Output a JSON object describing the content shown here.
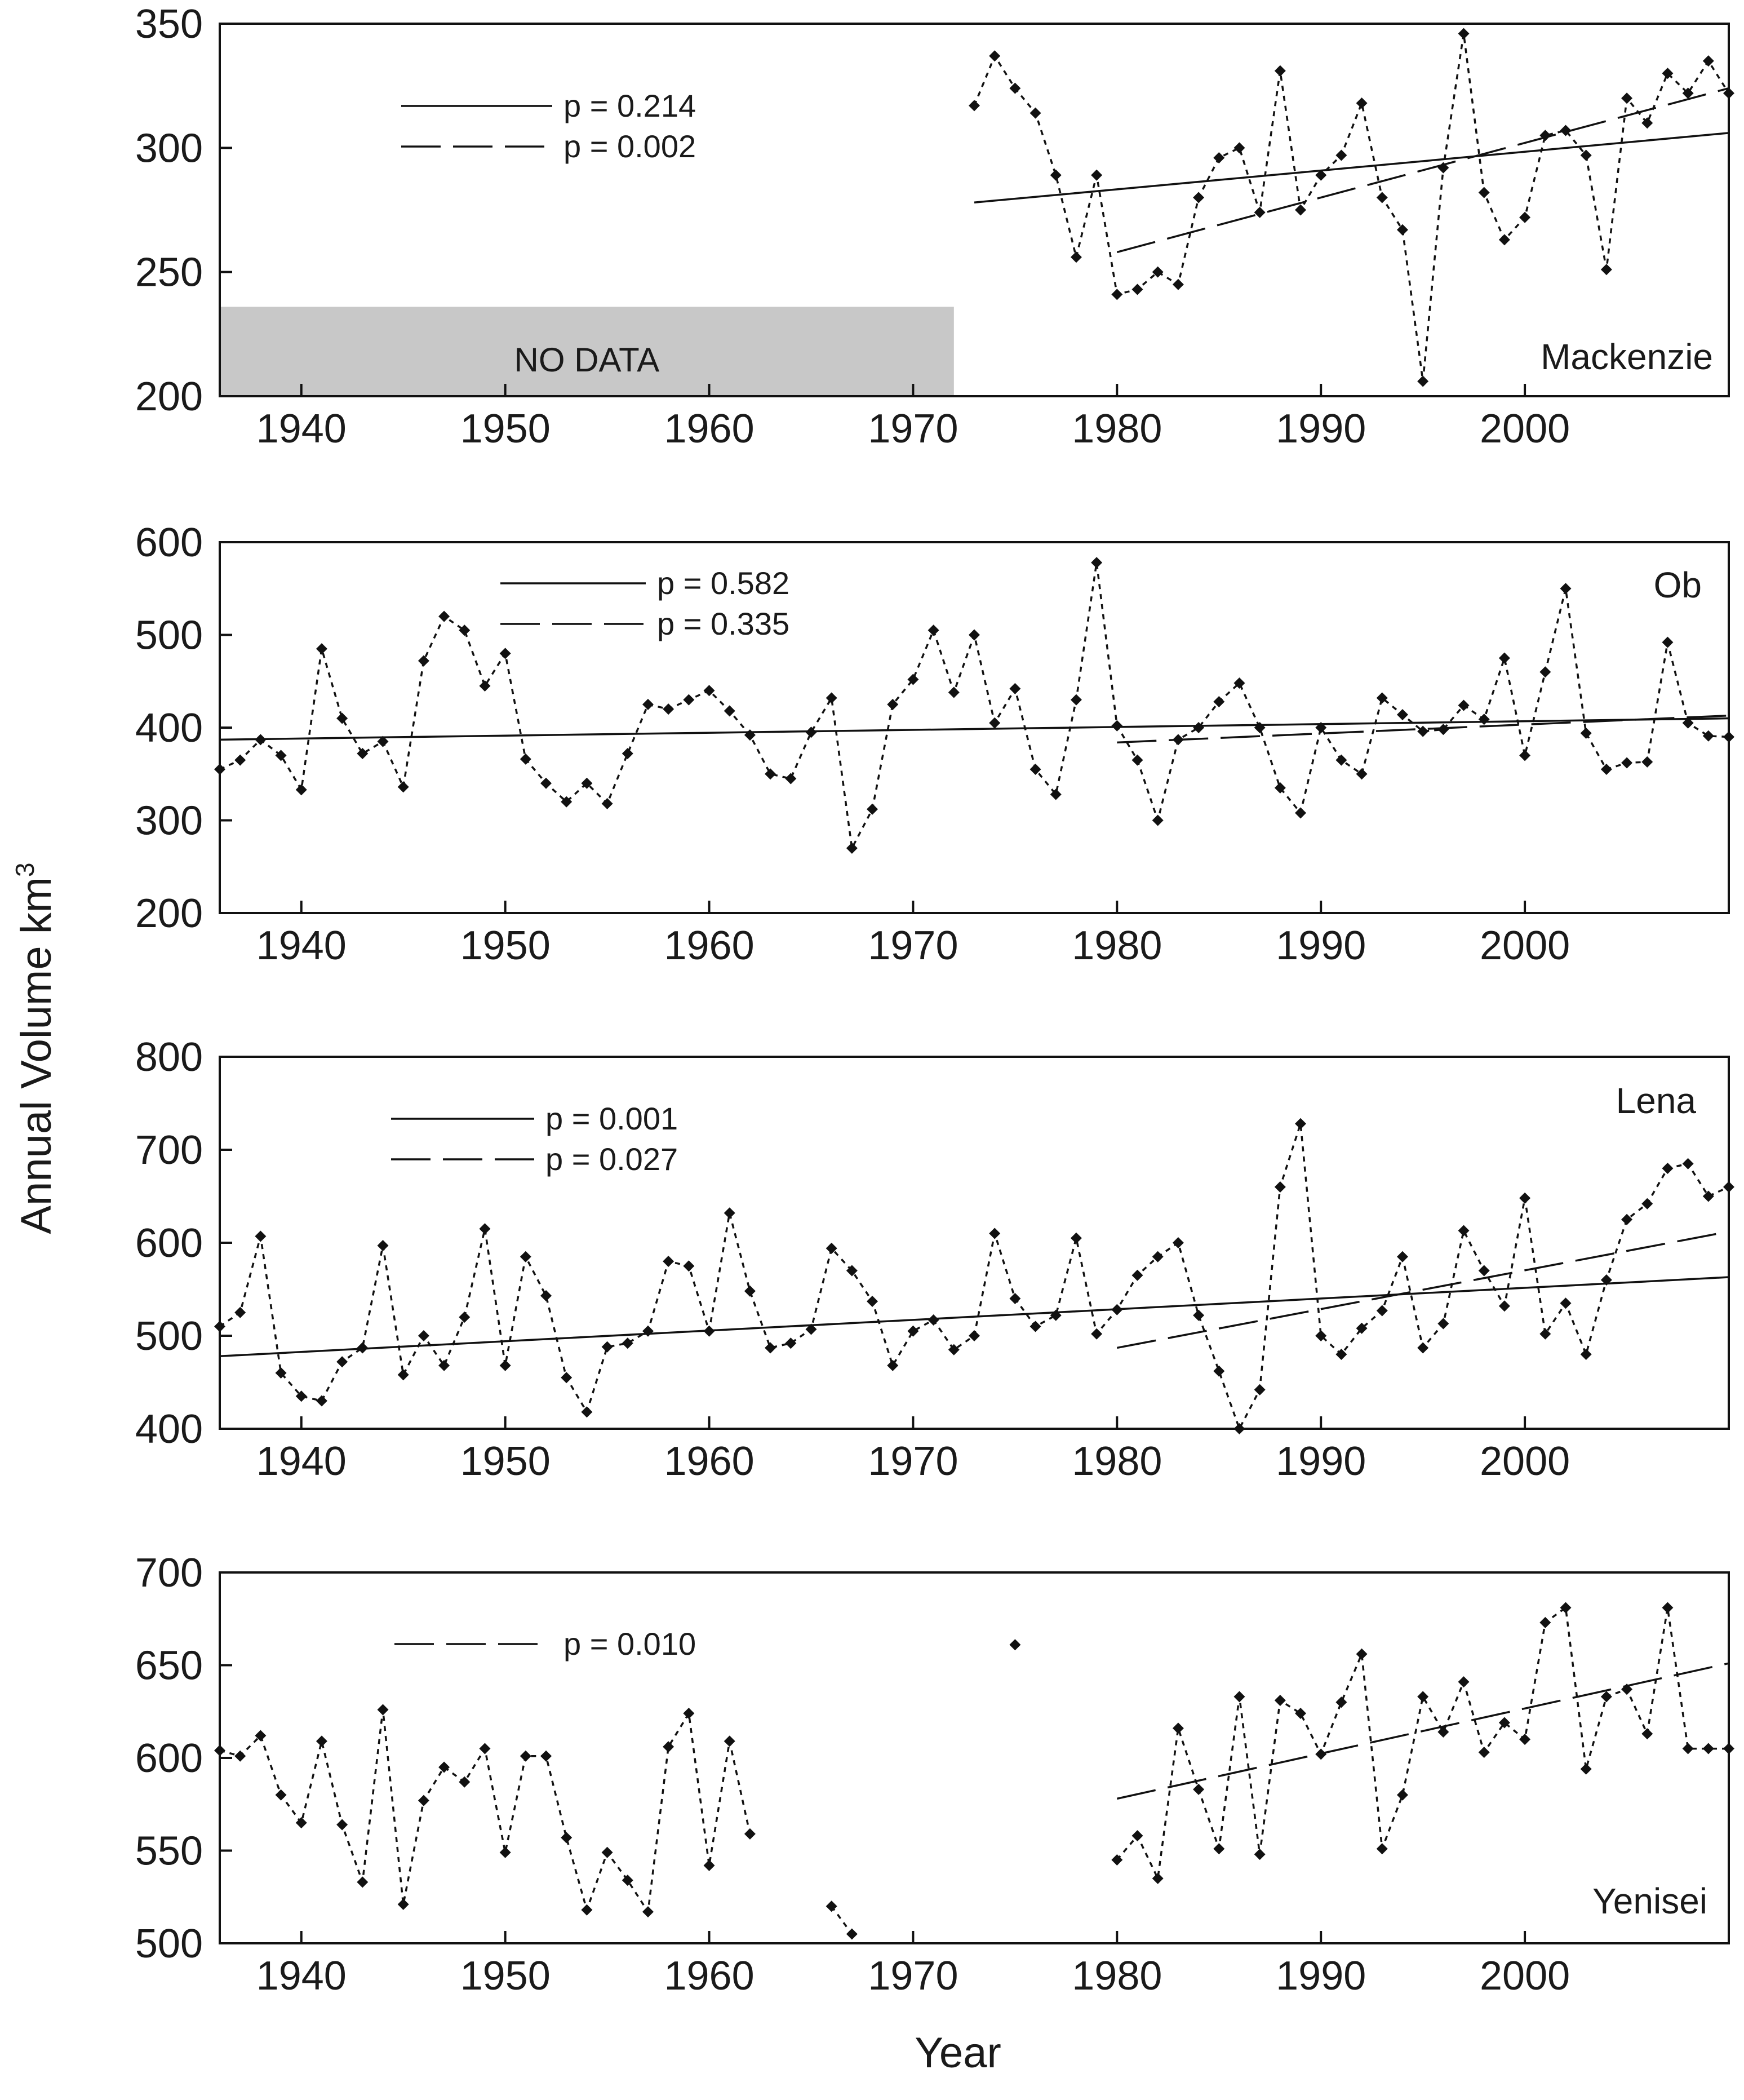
{
  "figure": {
    "xlabel": "Year",
    "ylabel": "Annual Volume km",
    "ylabel_sup": "3",
    "xticks": [
      1940,
      1950,
      1960,
      1970,
      1980,
      1990,
      2000
    ],
    "xlim": [
      1936,
      2010
    ]
  },
  "chart_data": [
    {
      "type": "line",
      "name": "Mackenzie",
      "ylim": [
        200,
        350
      ],
      "yticks": [
        200,
        250,
        300,
        350
      ],
      "no_data_label": "NO DATA",
      "no_data_range": [
        1936,
        1972
      ],
      "x": [
        1973,
        1974,
        1975,
        1976,
        1977,
        1978,
        1979,
        1980,
        1981,
        1982,
        1983,
        1984,
        1985,
        1986,
        1987,
        1988,
        1989,
        1990,
        1991,
        1992,
        1993,
        1994,
        1995,
        1996,
        1997,
        1998,
        1999,
        2000,
        2001,
        2002,
        2003,
        2004,
        2005,
        2006,
        2007,
        2008,
        2009,
        2010
      ],
      "values": [
        317,
        337,
        324,
        314,
        289,
        256,
        289,
        241,
        243,
        250,
        245,
        280,
        296,
        300,
        274,
        331,
        275,
        289,
        297,
        318,
        280,
        267,
        206,
        292,
        346,
        282,
        263,
        272,
        305,
        307,
        297,
        251,
        320,
        310,
        330,
        322,
        335,
        322
      ],
      "trends": [
        {
          "style": "solid",
          "label": "p = 0.214",
          "x": [
            1973,
            2010
          ],
          "y": [
            278,
            306
          ]
        },
        {
          "style": "dashed",
          "label": "p = 0.002",
          "x": [
            1980,
            2010
          ],
          "y": [
            258,
            324
          ]
        }
      ]
    },
    {
      "type": "line",
      "name": "Ob",
      "ylim": [
        200,
        600
      ],
      "yticks": [
        200,
        300,
        400,
        500,
        600
      ],
      "x": [
        1936,
        1937,
        1938,
        1939,
        1940,
        1941,
        1942,
        1943,
        1944,
        1945,
        1946,
        1947,
        1948,
        1949,
        1950,
        1951,
        1952,
        1953,
        1954,
        1955,
        1956,
        1957,
        1958,
        1959,
        1960,
        1961,
        1962,
        1963,
        1964,
        1965,
        1966,
        1967,
        1968,
        1969,
        1970,
        1971,
        1972,
        1973,
        1974,
        1975,
        1976,
        1977,
        1978,
        1979,
        1980,
        1981,
        1982,
        1983,
        1984,
        1985,
        1986,
        1987,
        1988,
        1989,
        1990,
        1991,
        1992,
        1993,
        1994,
        1995,
        1996,
        1997,
        1998,
        1999,
        2000,
        2001,
        2002,
        2003,
        2004,
        2005,
        2006,
        2007,
        2008,
        2009,
        2010
      ],
      "values": [
        355,
        365,
        387,
        370,
        333,
        485,
        410,
        372,
        385,
        336,
        472,
        520,
        505,
        445,
        480,
        366,
        340,
        320,
        340,
        318,
        372,
        425,
        420,
        430,
        440,
        418,
        392,
        350,
        345,
        395,
        432,
        270,
        312,
        425,
        452,
        505,
        438,
        500,
        405,
        442,
        355,
        328,
        430,
        578,
        402,
        365,
        300,
        387,
        400,
        428,
        448,
        400,
        335,
        308,
        400,
        365,
        350,
        432,
        414,
        396,
        398,
        424,
        409,
        475,
        370,
        460,
        550,
        394,
        355,
        362,
        363,
        492,
        405,
        391,
        390
      ],
      "trends": [
        {
          "style": "solid",
          "label": "p = 0.582",
          "x": [
            1936,
            2010
          ],
          "y": [
            387,
            410
          ]
        },
        {
          "style": "dashed",
          "label": "p = 0.335",
          "x": [
            1980,
            2010
          ],
          "y": [
            384,
            413
          ]
        }
      ]
    },
    {
      "type": "line",
      "name": "Lena",
      "ylim": [
        400,
        800
      ],
      "yticks": [
        400,
        500,
        600,
        700,
        800
      ],
      "x": [
        1936,
        1937,
        1938,
        1939,
        1940,
        1941,
        1942,
        1943,
        1944,
        1945,
        1946,
        1947,
        1948,
        1949,
        1950,
        1951,
        1952,
        1953,
        1954,
        1955,
        1956,
        1957,
        1958,
        1959,
        1960,
        1961,
        1962,
        1963,
        1964,
        1965,
        1966,
        1967,
        1968,
        1969,
        1970,
        1971,
        1972,
        1973,
        1974,
        1975,
        1976,
        1977,
        1978,
        1979,
        1980,
        1981,
        1982,
        1983,
        1984,
        1985,
        1986,
        1987,
        1988,
        1989,
        1990,
        1991,
        1992,
        1993,
        1994,
        1995,
        1996,
        1997,
        1998,
        1999,
        2000,
        2001,
        2002,
        2003,
        2004,
        2005,
        2006,
        2007,
        2008,
        2009,
        2010
      ],
      "values": [
        510,
        525,
        607,
        460,
        435,
        430,
        472,
        487,
        597,
        458,
        500,
        468,
        520,
        615,
        468,
        585,
        543,
        455,
        418,
        488,
        492,
        505,
        580,
        575,
        505,
        632,
        548,
        487,
        492,
        507,
        594,
        570,
        537,
        468,
        505,
        517,
        485,
        500,
        610,
        540,
        510,
        522,
        605,
        502,
        528,
        565,
        585,
        600,
        522,
        462,
        400,
        442,
        660,
        728,
        500,
        480,
        508,
        527,
        585,
        487,
        513,
        613,
        570,
        532,
        648,
        502,
        535,
        480,
        560,
        625,
        642,
        680,
        685,
        650,
        660
      ],
      "trends": [
        {
          "style": "solid",
          "label": "p = 0.001",
          "x": [
            1936,
            2010
          ],
          "y": [
            478,
            563
          ]
        },
        {
          "style": "dashed",
          "label": "p = 0.027",
          "x": [
            1980,
            2010
          ],
          "y": [
            487,
            612
          ]
        }
      ]
    },
    {
      "type": "line",
      "name": "Yenisei",
      "ylim": [
        500,
        700
      ],
      "yticks": [
        500,
        550,
        600,
        650,
        700
      ],
      "segments": [
        {
          "x": [
            1936,
            1937,
            1938,
            1939,
            1940,
            1941,
            1942,
            1943,
            1944,
            1945,
            1946,
            1947,
            1948,
            1949,
            1950,
            1951,
            1952,
            1953,
            1954,
            1955,
            1956,
            1957,
            1958,
            1959,
            1960,
            1961,
            1962
          ],
          "values": [
            604,
            601,
            612,
            580,
            565,
            609,
            564,
            533,
            626,
            521,
            577,
            595,
            587,
            605,
            549,
            601,
            601,
            557,
            518,
            549,
            534,
            517,
            606,
            624,
            542,
            609,
            559
          ]
        },
        {
          "x": [
            1966,
            1967
          ],
          "values": [
            520,
            505
          ]
        },
        {
          "x": [
            1975
          ],
          "values": [
            661
          ]
        },
        {
          "x": [
            1980,
            1981,
            1982,
            1983,
            1984,
            1985,
            1986,
            1987,
            1988,
            1989,
            1990,
            1991,
            1992,
            1993,
            1994,
            1995,
            1996,
            1997,
            1998,
            1999,
            2000,
            2001,
            2002,
            2003,
            2004,
            2005,
            2006,
            2007,
            2008,
            2009,
            2010
          ],
          "values": [
            545,
            558,
            535,
            616,
            583,
            551,
            633,
            548,
            631,
            624,
            602,
            630,
            656,
            551,
            580,
            633,
            614,
            641,
            603,
            619,
            610,
            673,
            681,
            594,
            633,
            637,
            613,
            681,
            605,
            605,
            605
          ]
        }
      ],
      "trends": [
        {
          "style": "dashed",
          "label": "p = 0.010",
          "x": [
            1980,
            2010
          ],
          "y": [
            578,
            651
          ]
        }
      ]
    }
  ]
}
